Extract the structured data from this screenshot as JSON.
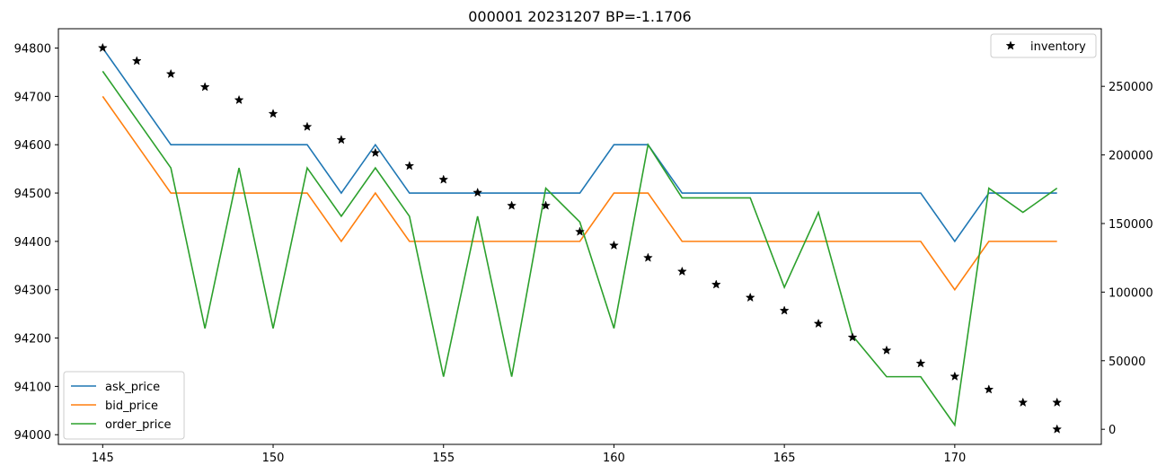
{
  "chart_data": {
    "type": "line",
    "title": "000001 20231207 BP=-1.1706",
    "xlabel": "",
    "ylabel": "",
    "x_ticks": [
      145,
      150,
      155,
      160,
      165,
      170
    ],
    "xlim": [
      143.7,
      174.3
    ],
    "ylim": [
      93980,
      94840
    ],
    "y_ticks": [
      94000,
      94100,
      94200,
      94300,
      94400,
      94500,
      94600,
      94700,
      94800
    ],
    "y2lim": [
      -11000,
      292000
    ],
    "y2_ticks": [
      0,
      50000,
      100000,
      150000,
      200000,
      250000
    ],
    "grid": false,
    "x": [
      145,
      146,
      147,
      148,
      149,
      150,
      151,
      152,
      153,
      154,
      155,
      156,
      157,
      158,
      159,
      160,
      161,
      162,
      163,
      164,
      165,
      166,
      167,
      168,
      169,
      170,
      171,
      172,
      173
    ],
    "series": [
      {
        "name": "ask_price",
        "color": "#1f77b4",
        "values": [
          94800,
          94700,
          94600,
          94600,
          94600,
          94600,
          94600,
          94500,
          94600,
          94500,
          94500,
          94500,
          94500,
          94500,
          94500,
          94600,
          94600,
          94500,
          94500,
          94500,
          94500,
          94500,
          94500,
          94500,
          94500,
          94400,
          94500,
          94500,
          94500
        ]
      },
      {
        "name": "bid_price",
        "color": "#ff7f0e",
        "values": [
          94700,
          94600,
          94500,
          94500,
          94500,
          94500,
          94500,
          94400,
          94500,
          94400,
          94400,
          94400,
          94400,
          94400,
          94400,
          94500,
          94500,
          94400,
          94400,
          94400,
          94400,
          94400,
          94400,
          94400,
          94400,
          94300,
          94400,
          94400,
          94400
        ]
      },
      {
        "name": "order_price",
        "color": "#2ca02c",
        "values": [
          94752,
          94652,
          94552,
          94220,
          94552,
          94220,
          94552,
          94452,
          94552,
          94452,
          94120,
          94452,
          94120,
          94510,
          94440,
          94220,
          94600,
          94490,
          94490,
          94490,
          94305,
          94460,
          94205,
          94120,
          94120,
          94020,
          94510,
          94460,
          94510
        ]
      },
      {
        "name": "inventory",
        "axis": "right",
        "style": "star",
        "color": "#000000",
        "x": [
          145,
          146,
          147,
          148,
          149,
          150,
          151,
          152,
          153,
          154,
          155,
          156,
          157,
          158,
          159,
          160,
          161,
          162,
          163,
          164,
          165,
          166,
          167,
          168,
          169,
          170,
          171,
          172,
          173,
          173
        ],
        "values": [
          278000,
          268500,
          259000,
          249500,
          240000,
          230000,
          220500,
          211000,
          201500,
          192000,
          182000,
          172500,
          163000,
          163000,
          144000,
          134000,
          125000,
          115000,
          105500,
          96000,
          86500,
          77000,
          67000,
          57500,
          48000,
          38500,
          29000,
          19500,
          19500,
          0
        ]
      }
    ],
    "legends": [
      {
        "placement": "lower-left",
        "items": [
          "ask_price",
          "bid_price",
          "order_price"
        ]
      },
      {
        "placement": "upper-right",
        "items": [
          "inventory"
        ]
      }
    ]
  }
}
